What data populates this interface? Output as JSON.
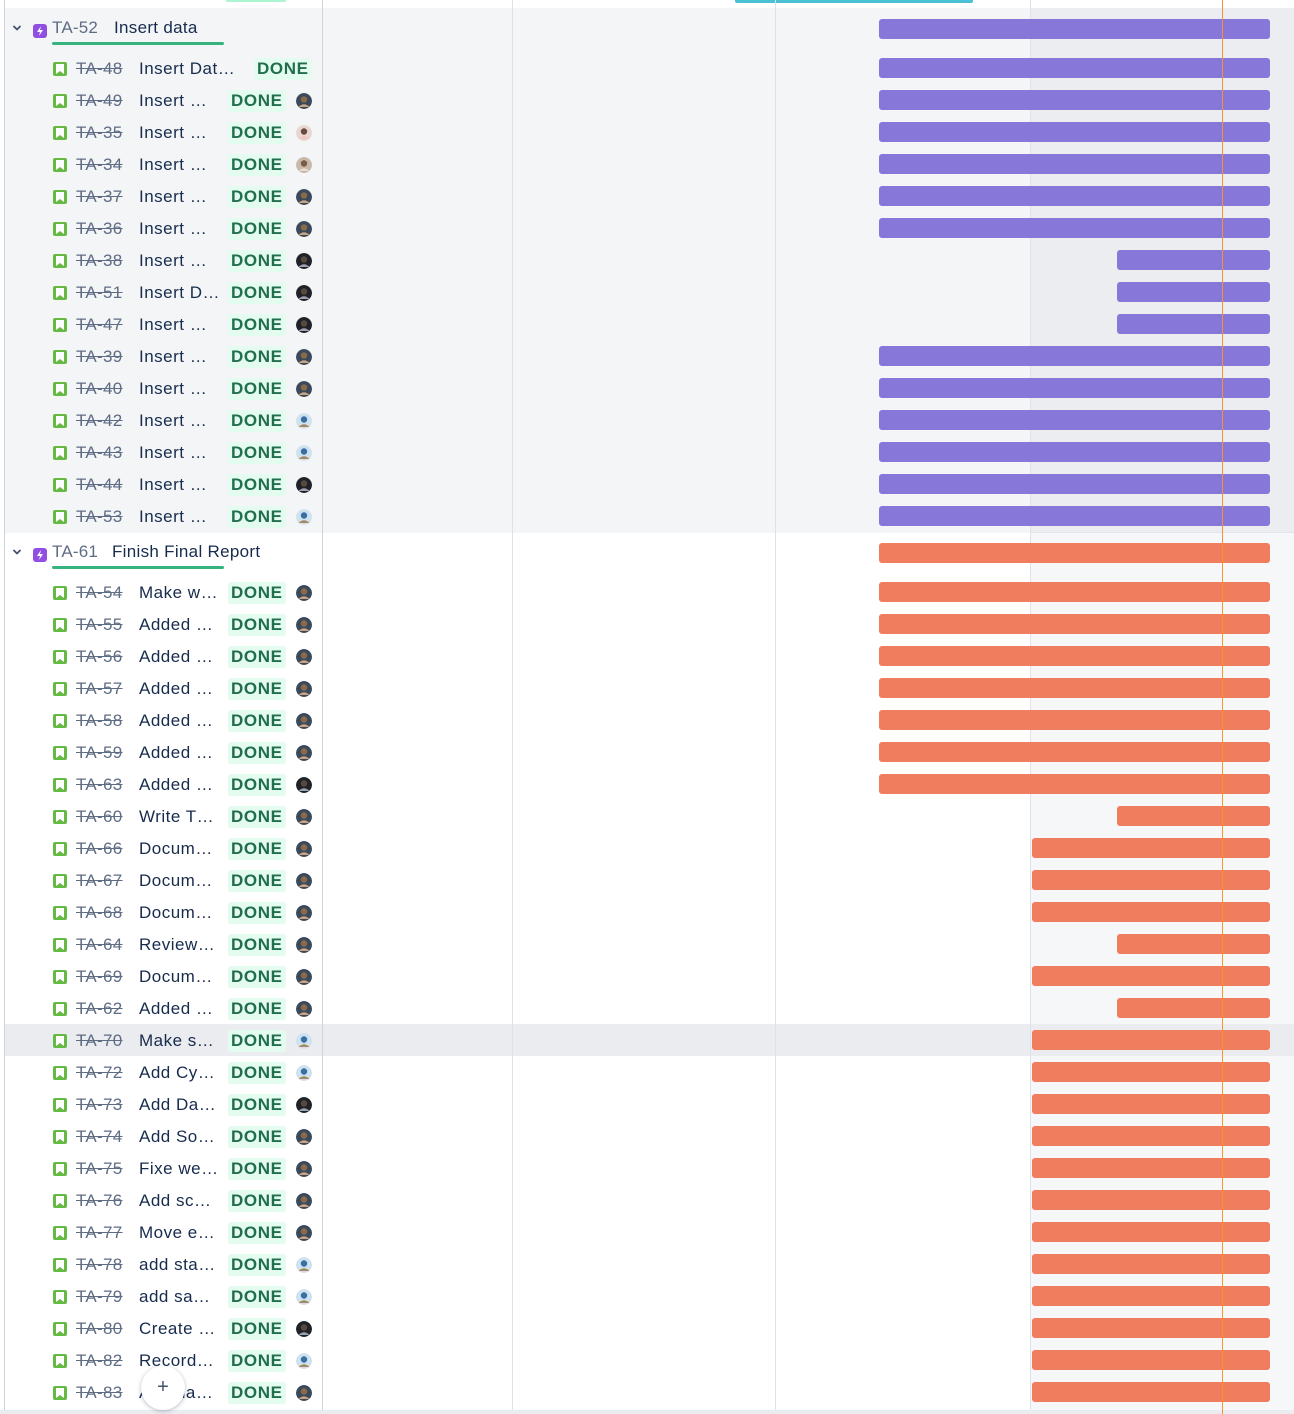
{
  "colors": {
    "epic_accent": "#904ee2",
    "story_icon": "#65ba43",
    "done_text": "#216e4e",
    "done_bg": "#e3fcef",
    "bar_purple": "#8777d9",
    "bar_orange": "#f07d5d",
    "today_marker": "#f79232"
  },
  "icons": {
    "chevron": "chevron-down-icon",
    "epic": "epic-lightning-icon",
    "story": "story-bookmark-icon",
    "create": "plus-icon"
  },
  "create_button": {
    "label": "+"
  },
  "epics": [
    {
      "key": "TA-52",
      "title": "Insert data",
      "bar_color": "purple",
      "issues": [
        {
          "key": "TA-48",
          "summary": "Insert Dat…",
          "status": "DONE",
          "avatar": null
        },
        {
          "key": "TA-49",
          "summary": "Insert …",
          "status": "DONE",
          "avatar": "avatar-a"
        },
        {
          "key": "TA-35",
          "summary": "Insert …",
          "status": "DONE",
          "avatar": "avatar-b"
        },
        {
          "key": "TA-34",
          "summary": "Insert …",
          "status": "DONE",
          "avatar": "avatar-c"
        },
        {
          "key": "TA-37",
          "summary": "Insert …",
          "status": "DONE",
          "avatar": "avatar-a"
        },
        {
          "key": "TA-36",
          "summary": "Insert …",
          "status": "DONE",
          "avatar": "avatar-a"
        },
        {
          "key": "TA-38",
          "summary": "Insert …",
          "status": "DONE",
          "avatar": "avatar-d"
        },
        {
          "key": "TA-51",
          "summary": "Insert D…",
          "status": "DONE",
          "avatar": "avatar-d"
        },
        {
          "key": "TA-47",
          "summary": "Insert …",
          "status": "DONE",
          "avatar": "avatar-d"
        },
        {
          "key": "TA-39",
          "summary": "Insert …",
          "status": "DONE",
          "avatar": "avatar-a"
        },
        {
          "key": "TA-40",
          "summary": "Insert …",
          "status": "DONE",
          "avatar": "avatar-a"
        },
        {
          "key": "TA-42",
          "summary": "Insert …",
          "status": "DONE",
          "avatar": "avatar-e"
        },
        {
          "key": "TA-43",
          "summary": "Insert …",
          "status": "DONE",
          "avatar": "avatar-e"
        },
        {
          "key": "TA-44",
          "summary": "Insert …",
          "status": "DONE",
          "avatar": "avatar-d"
        },
        {
          "key": "TA-53",
          "summary": "Insert …",
          "status": "DONE",
          "avatar": "avatar-e"
        }
      ]
    },
    {
      "key": "TA-61",
      "title": "Finish Final Report",
      "bar_color": "orange",
      "issues": [
        {
          "key": "TA-54",
          "summary": "Make w…",
          "status": "DONE",
          "avatar": "avatar-a"
        },
        {
          "key": "TA-55",
          "summary": "Added …",
          "status": "DONE",
          "avatar": "avatar-a"
        },
        {
          "key": "TA-56",
          "summary": "Added …",
          "status": "DONE",
          "avatar": "avatar-a"
        },
        {
          "key": "TA-57",
          "summary": "Added …",
          "status": "DONE",
          "avatar": "avatar-a"
        },
        {
          "key": "TA-58",
          "summary": "Added …",
          "status": "DONE",
          "avatar": "avatar-a"
        },
        {
          "key": "TA-59",
          "summary": "Added …",
          "status": "DONE",
          "avatar": "avatar-a"
        },
        {
          "key": "TA-63",
          "summary": "Added …",
          "status": "DONE",
          "avatar": "avatar-d"
        },
        {
          "key": "TA-60",
          "summary": "Write T…",
          "status": "DONE",
          "avatar": "avatar-a"
        },
        {
          "key": "TA-66",
          "summary": "Docum…",
          "status": "DONE",
          "avatar": "avatar-a"
        },
        {
          "key": "TA-67",
          "summary": "Docum…",
          "status": "DONE",
          "avatar": "avatar-a"
        },
        {
          "key": "TA-68",
          "summary": "Docum…",
          "status": "DONE",
          "avatar": "avatar-a"
        },
        {
          "key": "TA-64",
          "summary": "Review…",
          "status": "DONE",
          "avatar": "avatar-a"
        },
        {
          "key": "TA-69",
          "summary": "Docum…",
          "status": "DONE",
          "avatar": "avatar-a"
        },
        {
          "key": "TA-62",
          "summary": "Added …",
          "status": "DONE",
          "avatar": "avatar-a"
        },
        {
          "key": "TA-70",
          "summary": "Make s…",
          "status": "DONE",
          "avatar": "avatar-e"
        },
        {
          "key": "TA-72",
          "summary": "Add Cy…",
          "status": "DONE",
          "avatar": "avatar-e"
        },
        {
          "key": "TA-73",
          "summary": "Add Da…",
          "status": "DONE",
          "avatar": "avatar-d"
        },
        {
          "key": "TA-74",
          "summary": "Add So…",
          "status": "DONE",
          "avatar": "avatar-a"
        },
        {
          "key": "TA-75",
          "summary": "Fixe we…",
          "status": "DONE",
          "avatar": "avatar-a"
        },
        {
          "key": "TA-76",
          "summary": "Add sc…",
          "status": "DONE",
          "avatar": "avatar-a"
        },
        {
          "key": "TA-77",
          "summary": "Move e…",
          "status": "DONE",
          "avatar": "avatar-a"
        },
        {
          "key": "TA-78",
          "summary": "add sta…",
          "status": "DONE",
          "avatar": "avatar-e"
        },
        {
          "key": "TA-79",
          "summary": "add sa…",
          "status": "DONE",
          "avatar": "avatar-e"
        },
        {
          "key": "TA-80",
          "summary": "Create …",
          "status": "DONE",
          "avatar": "avatar-d"
        },
        {
          "key": "TA-82",
          "summary": "Record…",
          "status": "DONE",
          "avatar": "avatar-e"
        },
        {
          "key": "TA-83",
          "summary": "Add da…",
          "status": "DONE",
          "avatar": "avatar-a"
        }
      ]
    }
  ]
}
